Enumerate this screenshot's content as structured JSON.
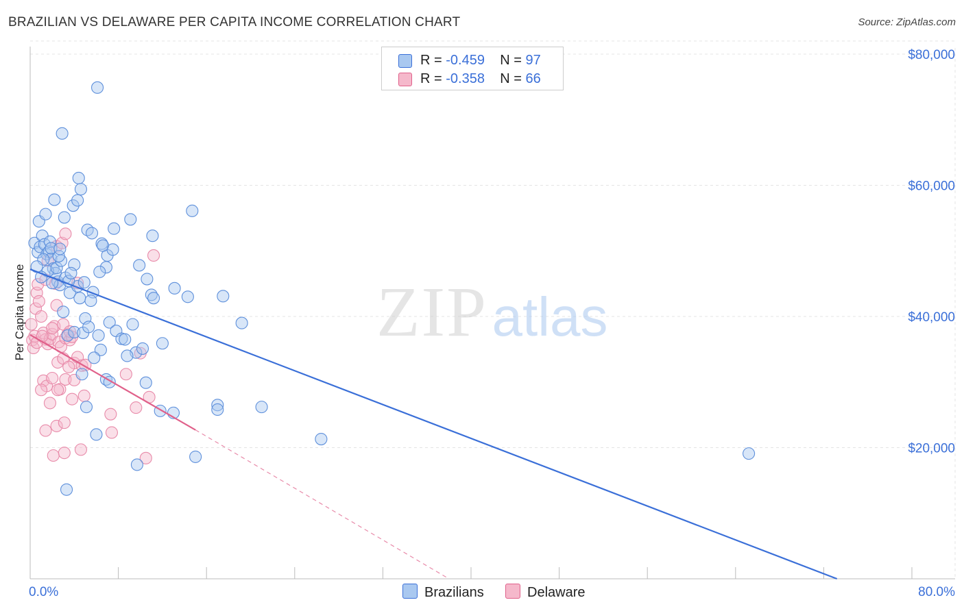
{
  "title": "BRAZILIAN VS DELAWARE PER CAPITA INCOME CORRELATION CHART",
  "source": "Source: ZipAtlas.com",
  "watermark": {
    "zip": "ZIP",
    "atlas": "atlas"
  },
  "legend": {
    "rows": [
      {
        "r_label": "R = ",
        "r_value": "-0.459",
        "n_label": "N = ",
        "n_value": "97",
        "color": "#a9c8f0"
      },
      {
        "r_label": "R = ",
        "r_value": "-0.358",
        "n_label": "N = ",
        "n_value": "66",
        "color": "#f5b8cb"
      }
    ]
  },
  "bottom_legend": {
    "brazilians": "Brazilians",
    "delaware": "Delaware"
  },
  "chart_data": {
    "type": "scatter",
    "title": "BRAZILIAN VS DELAWARE PER CAPITA INCOME CORRELATION CHART",
    "xlabel": "",
    "ylabel": "Per Capita Income",
    "xlim": [
      0,
      80
    ],
    "ylim": [
      0,
      82000
    ],
    "x_tick_labels": [
      "0.0%",
      "80.0%"
    ],
    "y_ticks": [
      20000,
      40000,
      60000,
      80000
    ],
    "y_tick_labels": [
      "$20,000",
      "$40,000",
      "$60,000",
      "$80,000"
    ],
    "grid": true,
    "colors": {
      "brazilians": "#3a6fd8",
      "delaware": "#e0608a"
    },
    "series": [
      {
        "name": "Brazilians",
        "r": -0.459,
        "n": 97,
        "trend": {
          "x": [
            0,
            73.2
          ],
          "y": [
            47200,
            0
          ]
        },
        "points": [
          [
            0.4,
            51200
          ],
          [
            0.7,
            49800
          ],
          [
            0.9,
            50600
          ],
          [
            1.1,
            52300
          ],
          [
            1.3,
            51000
          ],
          [
            1.5,
            49500
          ],
          [
            1.7,
            49900
          ],
          [
            1.9,
            48800
          ],
          [
            2.1,
            47300
          ],
          [
            2.3,
            46600
          ],
          [
            2.5,
            45300
          ],
          [
            2.7,
            44800
          ],
          [
            0.8,
            54500
          ],
          [
            1.4,
            55600
          ],
          [
            2.2,
            57800
          ],
          [
            3.1,
            55100
          ],
          [
            3.9,
            56900
          ],
          [
            4.3,
            57700
          ],
          [
            4.4,
            61100
          ],
          [
            4.6,
            59400
          ],
          [
            6.1,
            74900
          ],
          [
            2.9,
            67900
          ],
          [
            1.6,
            46900
          ],
          [
            2.0,
            45100
          ],
          [
            2.4,
            47400
          ],
          [
            2.8,
            48500
          ],
          [
            3.2,
            45900
          ],
          [
            3.6,
            43600
          ],
          [
            4.0,
            47900
          ],
          [
            4.3,
            44600
          ],
          [
            5.2,
            53200
          ],
          [
            5.6,
            52700
          ],
          [
            6.5,
            51100
          ],
          [
            7.0,
            49300
          ],
          [
            7.6,
            53400
          ],
          [
            9.1,
            54800
          ],
          [
            11.1,
            52300
          ],
          [
            6.9,
            47500
          ],
          [
            6.3,
            46800
          ],
          [
            9.9,
            47800
          ],
          [
            10.6,
            45700
          ],
          [
            11.0,
            43300
          ],
          [
            11.2,
            42800
          ],
          [
            13.1,
            44300
          ],
          [
            14.3,
            43000
          ],
          [
            17.5,
            43100
          ],
          [
            19.2,
            39000
          ],
          [
            14.7,
            56100
          ],
          [
            3.0,
            40700
          ],
          [
            3.4,
            37100
          ],
          [
            4.0,
            37600
          ],
          [
            4.8,
            37500
          ],
          [
            5.0,
            39700
          ],
          [
            5.3,
            38400
          ],
          [
            5.7,
            43700
          ],
          [
            6.2,
            37100
          ],
          [
            7.2,
            39100
          ],
          [
            7.8,
            37800
          ],
          [
            8.3,
            36600
          ],
          [
            8.6,
            36500
          ],
          [
            9.3,
            38800
          ],
          [
            9.6,
            34500
          ],
          [
            10.2,
            35100
          ],
          [
            12.0,
            35900
          ],
          [
            8.8,
            34000
          ],
          [
            6.4,
            34900
          ],
          [
            5.8,
            33700
          ],
          [
            4.7,
            31200
          ],
          [
            5.1,
            26200
          ],
          [
            6.9,
            30400
          ],
          [
            7.2,
            30000
          ],
          [
            10.5,
            29900
          ],
          [
            11.8,
            25600
          ],
          [
            13.0,
            25300
          ],
          [
            17.0,
            26500
          ],
          [
            17.0,
            25800
          ],
          [
            21.0,
            26200
          ],
          [
            26.4,
            21300
          ],
          [
            6.0,
            22000
          ],
          [
            15.0,
            18600
          ],
          [
            9.7,
            17400
          ],
          [
            3.3,
            13600
          ],
          [
            1.2,
            48700
          ],
          [
            1.8,
            51400
          ],
          [
            2.6,
            49200
          ],
          [
            3.5,
            45400
          ],
          [
            0.6,
            47600
          ],
          [
            1.0,
            46000
          ],
          [
            1.9,
            50400
          ],
          [
            2.7,
            50300
          ],
          [
            65.2,
            19100
          ],
          [
            3.7,
            46600
          ],
          [
            4.5,
            42800
          ],
          [
            5.5,
            42400
          ],
          [
            4.9,
            45200
          ],
          [
            6.6,
            50800
          ],
          [
            7.5,
            50200
          ]
        ]
      },
      {
        "name": "Delaware",
        "r": -0.358,
        "n": 66,
        "trend": {
          "x": [
            0,
            15.0
          ],
          "y": [
            37200,
            22700
          ]
        },
        "trend_extension": {
          "x": [
            15.0,
            38.0
          ],
          "y": [
            22700,
            0
          ]
        },
        "points": [
          [
            0.1,
            38800
          ],
          [
            0.2,
            36400
          ],
          [
            0.3,
            35200
          ],
          [
            0.4,
            37000
          ],
          [
            0.5,
            41200
          ],
          [
            0.6,
            43600
          ],
          [
            0.7,
            44900
          ],
          [
            0.8,
            42300
          ],
          [
            1.0,
            40000
          ],
          [
            1.2,
            37500
          ],
          [
            1.4,
            36500
          ],
          [
            1.6,
            35800
          ],
          [
            1.8,
            36600
          ],
          [
            2.0,
            37300
          ],
          [
            2.2,
            38500
          ],
          [
            2.4,
            41700
          ],
          [
            2.6,
            36100
          ],
          [
            2.8,
            35400
          ],
          [
            3.0,
            38800
          ],
          [
            3.2,
            36700
          ],
          [
            3.4,
            37300
          ],
          [
            3.6,
            36400
          ],
          [
            3.8,
            36900
          ],
          [
            4.0,
            32900
          ],
          [
            4.3,
            33800
          ],
          [
            4.7,
            32500
          ],
          [
            5.0,
            32600
          ],
          [
            2.5,
            33000
          ],
          [
            3.0,
            33600
          ],
          [
            3.5,
            32300
          ],
          [
            1.2,
            30200
          ],
          [
            1.5,
            29400
          ],
          [
            2.0,
            30600
          ],
          [
            2.7,
            28900
          ],
          [
            3.2,
            30400
          ],
          [
            4.0,
            30300
          ],
          [
            1.0,
            28800
          ],
          [
            1.8,
            26800
          ],
          [
            2.5,
            28800
          ],
          [
            3.8,
            27400
          ],
          [
            4.9,
            27900
          ],
          [
            2.4,
            23300
          ],
          [
            1.4,
            22600
          ],
          [
            3.1,
            23800
          ],
          [
            7.3,
            25100
          ],
          [
            7.4,
            22300
          ],
          [
            8.7,
            31200
          ],
          [
            9.6,
            26100
          ],
          [
            10.8,
            27700
          ],
          [
            10.0,
            34400
          ],
          [
            11.2,
            49300
          ],
          [
            1.6,
            48500
          ],
          [
            2.4,
            50700
          ],
          [
            2.9,
            51200
          ],
          [
            3.2,
            52600
          ],
          [
            1.4,
            45600
          ],
          [
            2.3,
            45000
          ],
          [
            4.3,
            45100
          ],
          [
            2.1,
            18800
          ],
          [
            3.1,
            19200
          ],
          [
            4.6,
            19700
          ],
          [
            10.5,
            18400
          ],
          [
            0.6,
            36000
          ],
          [
            1.1,
            37000
          ],
          [
            2.0,
            38200
          ],
          [
            3.6,
            37700
          ]
        ]
      }
    ]
  }
}
